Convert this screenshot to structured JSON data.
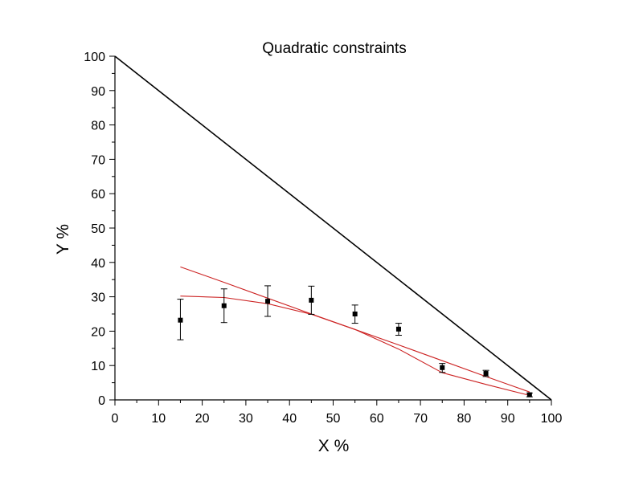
{
  "chart_data": {
    "type": "scatter",
    "title": "Quadratic constraints",
    "xlabel": "X %",
    "ylabel": "Y %",
    "xlim": [
      0,
      100
    ],
    "ylim": [
      0,
      100
    ],
    "xticks": [
      "0",
      "10",
      "20",
      "30",
      "40",
      "50",
      "60",
      "70",
      "80",
      "90",
      "100"
    ],
    "yticks": [
      "0",
      "10",
      "20",
      "30",
      "40",
      "50",
      "60",
      "70",
      "80",
      "90",
      "100"
    ],
    "grid": false,
    "points": [
      {
        "x": 15,
        "y": 23.2,
        "err_low": 17.5,
        "err_high": 29.3
      },
      {
        "x": 25,
        "y": 27.4,
        "err_low": 22.5,
        "err_high": 32.3
      },
      {
        "x": 35,
        "y": 28.7,
        "err_low": 24.3,
        "err_high": 33.2
      },
      {
        "x": 45,
        "y": 29.0,
        "err_low": 24.9,
        "err_high": 33.1
      },
      {
        "x": 55,
        "y": 25.0,
        "err_low": 22.3,
        "err_high": 27.6
      },
      {
        "x": 65,
        "y": 20.6,
        "err_low": 18.8,
        "err_high": 22.3
      },
      {
        "x": 75,
        "y": 9.4,
        "err_low": 8.0,
        "err_high": 10.6
      },
      {
        "x": 85,
        "y": 7.7,
        "err_low": 6.8,
        "err_high": 8.6
      },
      {
        "x": 95,
        "y": 1.5,
        "err_low": 0.9,
        "err_high": 2.0
      }
    ],
    "lines": [
      {
        "color": "#000000",
        "x": [
          0,
          100
        ],
        "y": [
          100,
          0
        ]
      },
      {
        "color": "#cc2222",
        "x": [
          15,
          25,
          35,
          45,
          55,
          65,
          75,
          85,
          95
        ],
        "y": [
          38.7,
          34.2,
          29.6,
          25.0,
          20.5,
          16.0,
          11.4,
          6.8,
          2.3
        ]
      },
      {
        "color": "#cc2222",
        "x": [
          15,
          25,
          35,
          45,
          55,
          65,
          75,
          85,
          95
        ],
        "y": [
          30.2,
          29.8,
          28.0,
          24.9,
          20.5,
          14.8,
          7.9,
          4.5,
          1.3
        ]
      }
    ]
  }
}
